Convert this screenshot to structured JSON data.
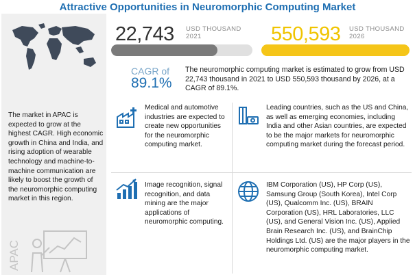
{
  "title": "Attractive Opportunities in Neuromorphic Computing Market",
  "stats": {
    "y2021": {
      "value": "22,743",
      "unit": "USD THOUSAND",
      "year": "2021",
      "bar_fill_fraction": 0.75
    },
    "y2026": {
      "value": "550,593",
      "unit": "USD THOUSAND",
      "year": "2026",
      "bar_fill_fraction": 1.0
    }
  },
  "cagr": {
    "label": "CAGR of",
    "value": "89.1%",
    "description": "The neuromorphic computing market is estimated to grow from USD 22,743 thousand in 2021 to USD 550,593 thousand by 2026, at a CAGR of 89.1%."
  },
  "apac": {
    "label": "APAC",
    "text": "The market in APAC is expected to grow at the highest CAGR. High economic growth in China and India, and rising adoption of wearable technology and machine-to-machine communication are likely to boost the growth of the neuromorphic computing market in this region."
  },
  "cells": [
    {
      "icon": "medical-industry-icon",
      "text": "Medical and automotive industries are expected to create new opportunities for the neuromorphic computing market."
    },
    {
      "icon": "country-money-icon",
      "text": "Leading countries, such as the US and China, as well as emerging economies, including India and other Asian countries, are expected to be the major markets for neuromorphic computing market during the forecast period."
    },
    {
      "icon": "growth-chart-icon",
      "text": "Image recognition, signal recognition, and data mining are the major applications of neuromorphic computing."
    },
    {
      "icon": "globe-network-icon",
      "text": "IBM Corporation (US), HP Corp (US), Samsung Group (South Korea), Intel Corp (US), Qualcomm Inc. (US), BRAIN Corporation (US), HRL Laboratories, LLC (US), and General Vision Inc. (US), Applied Brain Research Inc. (US), and BrainChip Holdings Ltd. (US) are the major players in the neuromorphic computing market."
    }
  ],
  "colors": {
    "accent_blue": "#1f6fb2",
    "accent_yellow": "#f5c518",
    "grey": "#7a7a7a"
  }
}
